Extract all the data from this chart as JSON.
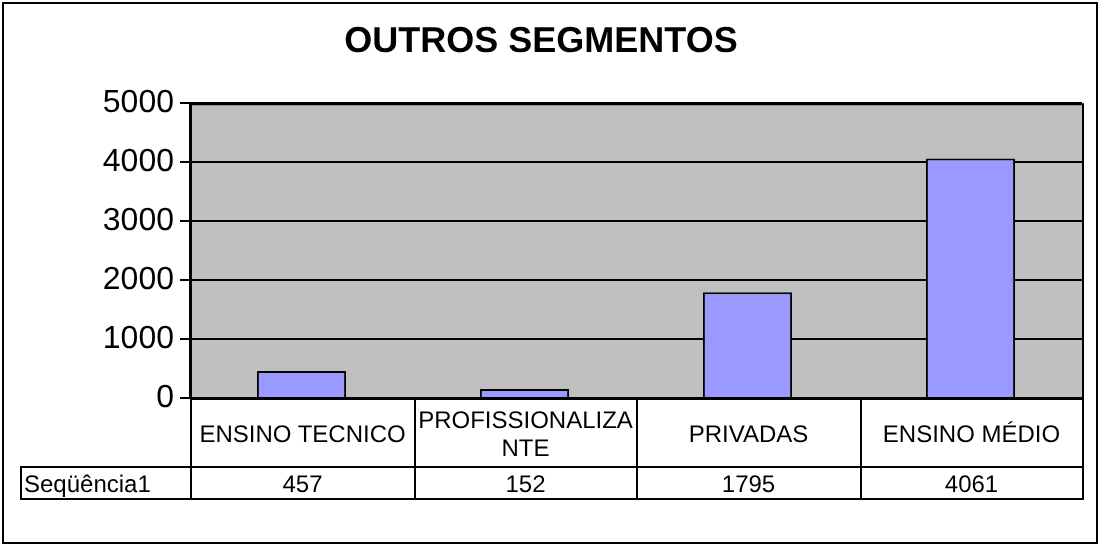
{
  "chart_data": {
    "type": "bar",
    "title": "OUTROS SEGMENTOS",
    "categories": [
      "ENSINO TECNICO",
      "PROFISSIONALIZANTE",
      "PRIVADAS",
      "ENSINO MÉDIO"
    ],
    "series": [
      {
        "name": "Seqüência1",
        "color": "#9999ff",
        "values": [
          457,
          152,
          1795,
          4061
        ]
      }
    ],
    "ylim": [
      0,
      5000
    ],
    "yticks": [
      0,
      1000,
      2000,
      3000,
      4000,
      5000
    ],
    "grid": "y",
    "data_labels": true
  }
}
